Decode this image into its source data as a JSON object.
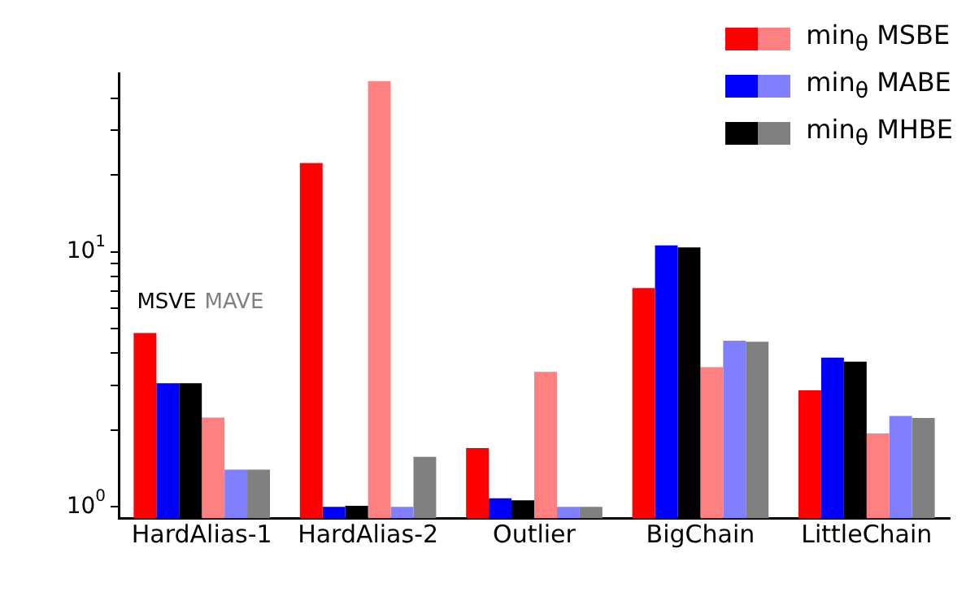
{
  "chart_data": {
    "type": "bar",
    "log": true,
    "categories": [
      "HardAlias-1",
      "HardAlias-2",
      "Outlier",
      "BigChain",
      "LittleChain"
    ],
    "series": [
      {
        "name": "min$_{θ}$ MSBE",
        "color": "#ff0000",
        "values": [
          4.8,
          22.3,
          1.7,
          7.2,
          2.86
        ]
      },
      {
        "name": "min$_{θ}$ MABE",
        "color": "#0000ff",
        "values": [
          3.05,
          1.0,
          1.08,
          10.6,
          3.85
        ]
      },
      {
        "name": "min$_{θ}$ MHBE",
        "color": "#000000",
        "values": [
          3.05,
          1.01,
          1.06,
          10.4,
          3.71
        ]
      },
      {
        "color": "#ff8080",
        "values": [
          2.24,
          46.7,
          3.38,
          3.53,
          1.94
        ]
      },
      {
        "color": "#8080ff",
        "values": [
          1.4,
          1.0,
          1.0,
          4.48,
          2.27
        ]
      },
      {
        "color": "#808080",
        "values": [
          1.4,
          1.57,
          1.0,
          4.44,
          2.23
        ]
      }
    ],
    "ylim": [
      0.9,
      50
    ],
    "yticks": [
      {
        "value": 1,
        "label": "10$^{0}$"
      },
      {
        "value": 2,
        "label": null
      },
      {
        "value": 3,
        "label": null
      },
      {
        "value": 4,
        "label": null
      },
      {
        "value": 5,
        "label": null
      },
      {
        "value": 6,
        "label": null
      },
      {
        "value": 7,
        "label": null
      },
      {
        "value": 8,
        "label": null
      },
      {
        "value": 9,
        "label": null
      },
      {
        "value": 10,
        "label": "10$^{1}$"
      },
      {
        "value": 20,
        "label": null
      },
      {
        "value": 30,
        "label": null
      },
      {
        "value": 40,
        "label": null
      }
    ],
    "annotations": [
      "MSVE",
      "MAVE"
    ],
    "grid": false,
    "legend": "top right"
  }
}
